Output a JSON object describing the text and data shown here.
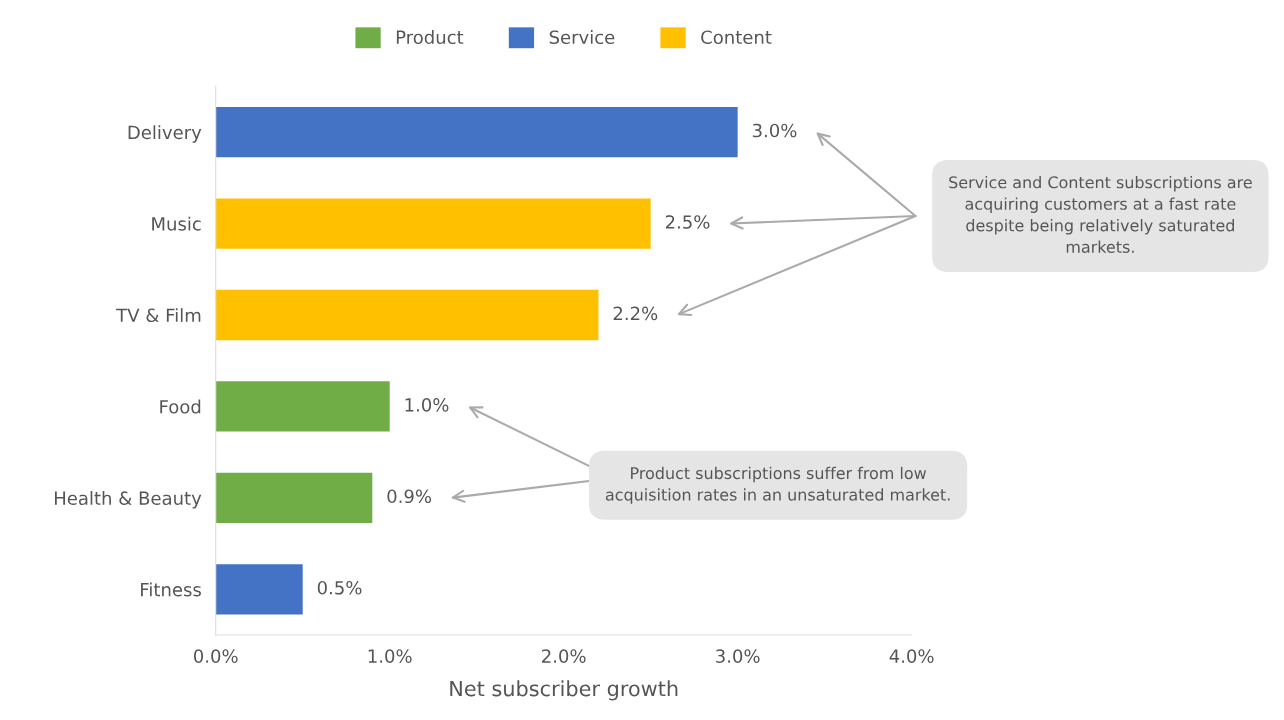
{
  "chart_data": {
    "type": "bar",
    "orientation": "horizontal",
    "stacked": true,
    "categories": [
      "Delivery",
      "Music",
      "TV & Film",
      "Food",
      "Health & Beauty",
      "Fitness"
    ],
    "series": [
      {
        "name": "Product",
        "color": "#70ad47",
        "values": [
          null,
          null,
          null,
          1.0,
          0.9,
          null
        ],
        "value_labels": [
          null,
          null,
          null,
          "1.0%",
          "0.9%",
          null
        ]
      },
      {
        "name": "Service",
        "color": "#4472c4",
        "values": [
          3.0,
          null,
          null,
          null,
          null,
          0.5
        ],
        "value_labels": [
          "3.0%",
          null,
          null,
          null,
          null,
          "0.5%"
        ]
      },
      {
        "name": "Content",
        "color": "#ffc000",
        "values": [
          null,
          2.5,
          2.2,
          null,
          null,
          null
        ],
        "value_labels": [
          null,
          "2.5%",
          "2.2%",
          null,
          null,
          null
        ]
      }
    ],
    "xlim": [
      0,
      4
    ],
    "xticks": [
      {
        "value": 0,
        "label": "0.0%"
      },
      {
        "value": 1,
        "label": "1.0%"
      },
      {
        "value": 2,
        "label": "2.0%"
      },
      {
        "value": 3,
        "label": "3.0%"
      },
      {
        "value": 4,
        "label": "4.0%"
      }
    ],
    "xlabel": "Net subscriber growth",
    "legend": "top",
    "grid": false,
    "annotations": [
      "Service and Content subscriptions are acquiring customers at a fast rate despite being relatively saturated markets.",
      "Product subscriptions suffer from low acquisition rates in an unsaturated market."
    ]
  }
}
